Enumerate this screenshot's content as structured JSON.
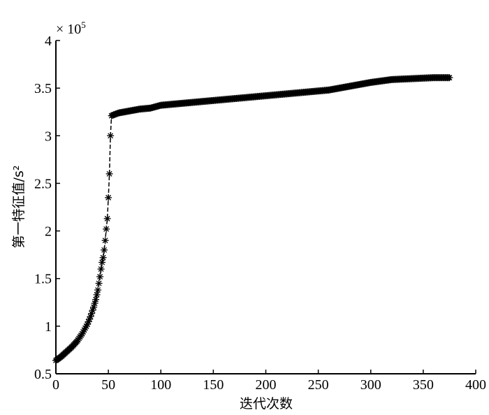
{
  "chart_data": {
    "type": "line",
    "title": "",
    "xlabel": "迭代次数",
    "ylabel": "第一特征值/s²",
    "y_multiplier": "× 10",
    "y_multiplier_exp": "5",
    "xlim": [
      0,
      400
    ],
    "ylim": [
      0.5,
      4
    ],
    "xticks": [
      0,
      50,
      100,
      150,
      200,
      250,
      300,
      350,
      400
    ],
    "xtick_labels": [
      "0",
      "50",
      "100",
      "150",
      "200",
      "250",
      "300",
      "350",
      "400"
    ],
    "yticks": [
      0.5,
      1,
      1.5,
      2,
      2.5,
      3,
      3.5,
      4
    ],
    "ytick_labels": [
      "0.5",
      "1",
      "1.5",
      "2",
      "2.5",
      "3",
      "3.5",
      "4"
    ],
    "grid": false,
    "marker": "*",
    "line_style": "dashed",
    "color": "#000000",
    "series": [
      {
        "name": "第一特征值",
        "x": [
          0,
          5,
          10,
          15,
          20,
          25,
          28,
          30,
          33,
          36,
          38,
          40,
          41,
          42,
          43,
          44,
          45,
          46,
          47,
          48,
          49,
          50,
          51,
          52,
          53,
          55,
          60,
          70,
          80,
          90,
          100,
          120,
          140,
          160,
          180,
          200,
          220,
          240,
          260,
          280,
          300,
          320,
          340,
          360,
          375
        ],
        "y": [
          0.64,
          0.68,
          0.73,
          0.78,
          0.84,
          0.92,
          0.98,
          1.02,
          1.1,
          1.2,
          1.28,
          1.38,
          1.45,
          1.52,
          1.6,
          1.67,
          1.72,
          1.8,
          1.9,
          2.02,
          2.13,
          2.35,
          2.6,
          3.0,
          3.21,
          3.22,
          3.24,
          3.26,
          3.28,
          3.29,
          3.32,
          3.34,
          3.36,
          3.38,
          3.4,
          3.42,
          3.44,
          3.46,
          3.48,
          3.52,
          3.56,
          3.59,
          3.6,
          3.61,
          3.61
        ]
      }
    ]
  }
}
